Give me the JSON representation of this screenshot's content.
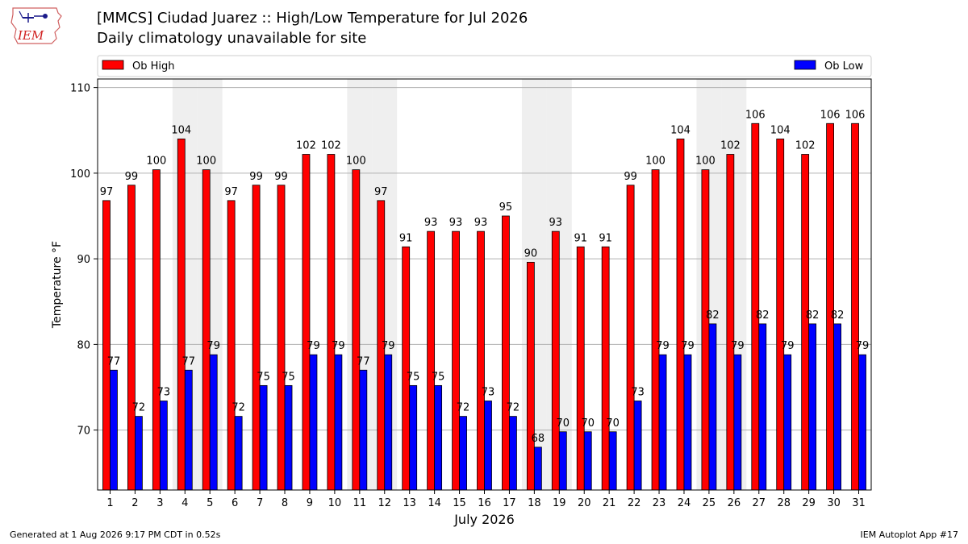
{
  "header": {
    "title": "[MMCS] Ciudad Juarez :: High/Low Temperature for Jul 2026",
    "subtitle": "Daily climatology unavailable for site",
    "logo_text": "IEM"
  },
  "footer": {
    "generated": "Generated at 1 Aug 2026 9:17 PM CDT in 0.52s",
    "app": "IEM Autoplot App #17"
  },
  "chart_data": {
    "type": "bar",
    "title": "[MMCS] Ciudad Juarez :: High/Low Temperature for Jul 2026",
    "subtitle": "Daily climatology unavailable for site",
    "xlabel": "July 2026",
    "ylabel": "Temperature °F",
    "categories": [
      "1",
      "2",
      "3",
      "4",
      "5",
      "6",
      "7",
      "8",
      "9",
      "10",
      "11",
      "12",
      "13",
      "14",
      "15",
      "16",
      "17",
      "18",
      "19",
      "20",
      "21",
      "22",
      "23",
      "24",
      "25",
      "26",
      "27",
      "28",
      "29",
      "30",
      "31"
    ],
    "series": [
      {
        "name": "Ob High",
        "color": "#ff0000",
        "values": [
          97,
          99,
          100,
          104,
          100,
          97,
          99,
          99,
          102,
          102,
          100,
          97,
          91,
          93,
          93,
          93,
          95,
          90,
          93,
          91,
          91,
          99,
          100,
          104,
          100,
          102,
          106,
          104,
          102,
          106,
          106
        ],
        "bar_tops": [
          96.8,
          98.6,
          100.4,
          104.0,
          100.4,
          96.8,
          98.6,
          98.6,
          102.2,
          102.2,
          100.4,
          96.8,
          91.4,
          93.2,
          93.2,
          93.2,
          95.0,
          89.6,
          93.2,
          91.4,
          91.4,
          98.6,
          100.4,
          104.0,
          100.4,
          102.2,
          105.8,
          104.0,
          102.2,
          105.8,
          105.8
        ]
      },
      {
        "name": "Ob Low",
        "color": "#0000ff",
        "values": [
          77,
          72,
          73,
          77,
          79,
          72,
          75,
          75,
          79,
          79,
          77,
          79,
          75,
          75,
          72,
          73,
          72,
          68,
          70,
          70,
          70,
          73,
          79,
          79,
          82,
          79,
          82,
          79,
          82,
          82,
          79
        ],
        "bar_tops": [
          77.0,
          71.6,
          73.4,
          77.0,
          78.8,
          71.6,
          75.2,
          75.2,
          78.8,
          78.8,
          77.0,
          78.8,
          75.2,
          75.2,
          71.6,
          73.4,
          71.6,
          68.0,
          69.8,
          69.8,
          69.8,
          73.4,
          78.8,
          78.8,
          82.4,
          78.8,
          82.4,
          78.8,
          82.4,
          82.4,
          78.8
        ]
      }
    ],
    "ylim": [
      63,
      111
    ],
    "yticks": [
      70,
      80,
      90,
      100,
      110
    ],
    "weekend_shading_days": [
      4,
      5,
      11,
      12,
      18,
      19,
      25,
      26
    ],
    "grid": "horizontal",
    "legend_placement": "top"
  }
}
